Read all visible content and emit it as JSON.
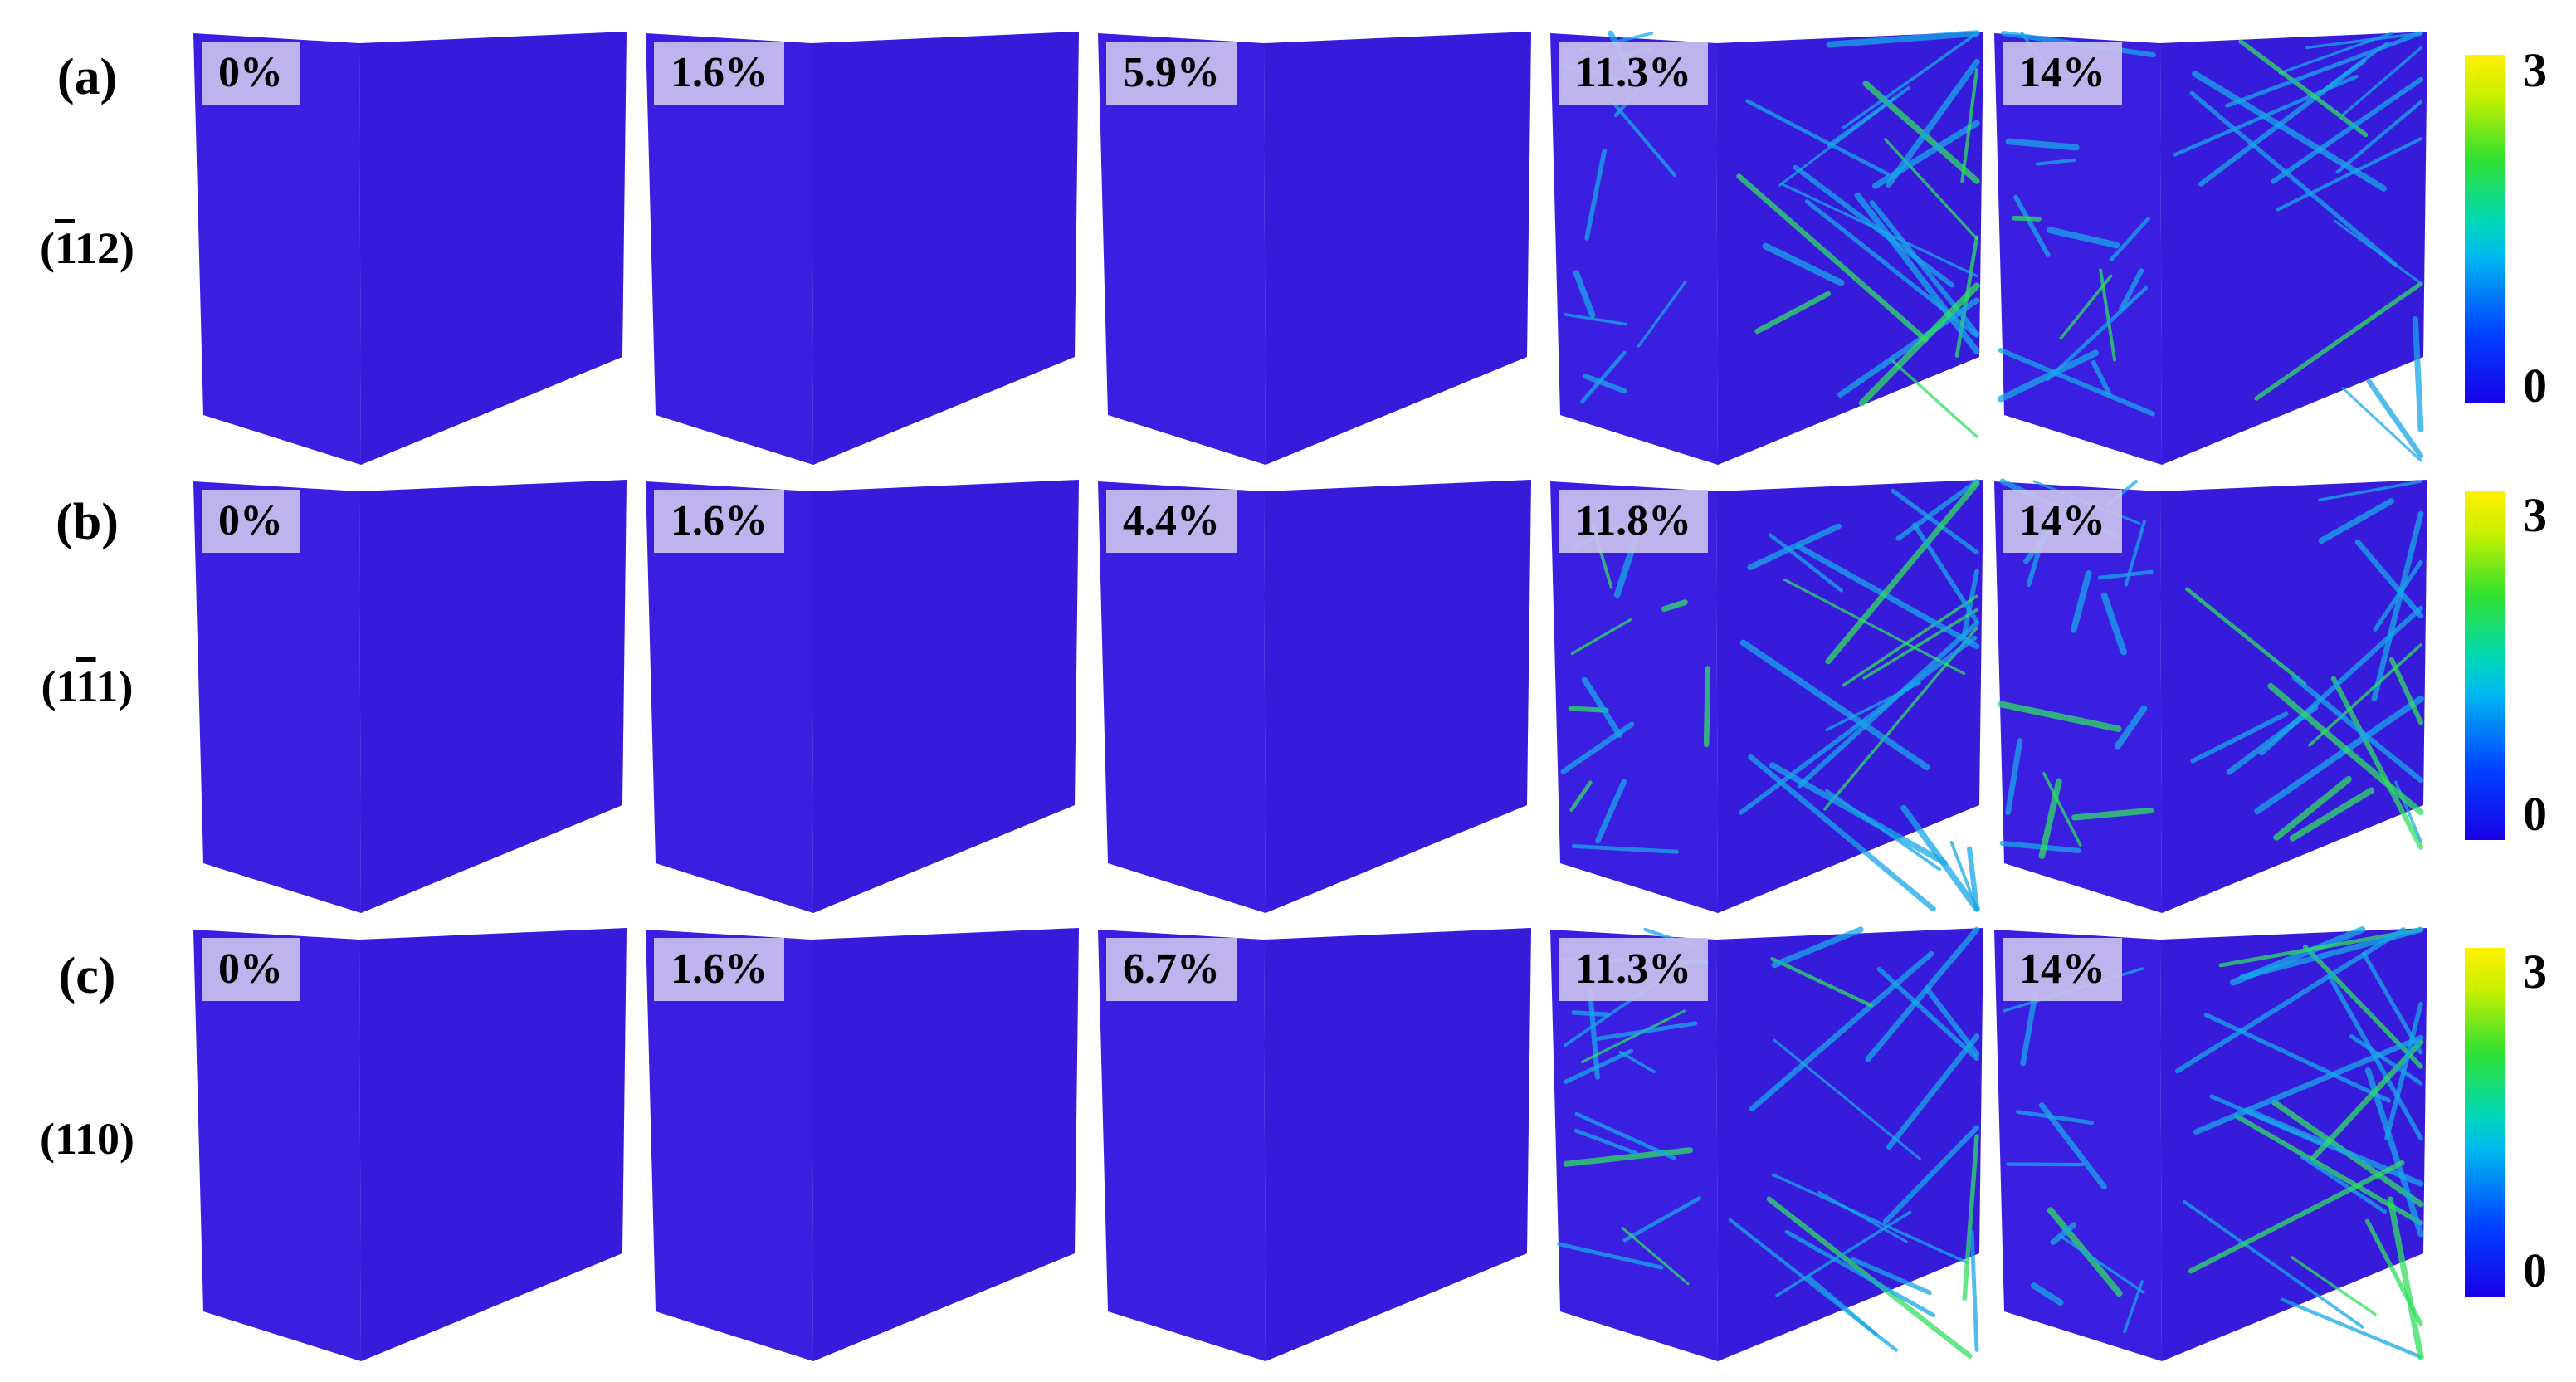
{
  "rows": [
    {
      "label": "(a)",
      "orientation": "(112)",
      "strains": [
        "0%",
        "1.6%",
        "5.9%",
        "11.3%",
        "14%"
      ]
    },
    {
      "label": "(b)",
      "orientation": "(111)",
      "strains": [
        "0%",
        "1.6%",
        "4.4%",
        "11.8%",
        "14%"
      ]
    },
    {
      "label": "(c)",
      "orientation": "(110)",
      "strains": [
        "0%",
        "1.6%",
        "6.7%",
        "11.3%",
        "14%"
      ]
    }
  ],
  "colorbar": {
    "max_label": "3",
    "min_label": "0",
    "colors": [
      "#fff000",
      "#30e030",
      "#00d8b8",
      "#0040ff",
      "#1800e8"
    ]
  },
  "colors": {
    "cube_base": "#3a1fe0",
    "defect_low": "#18a8e8",
    "defect_high": "#30e060"
  }
}
